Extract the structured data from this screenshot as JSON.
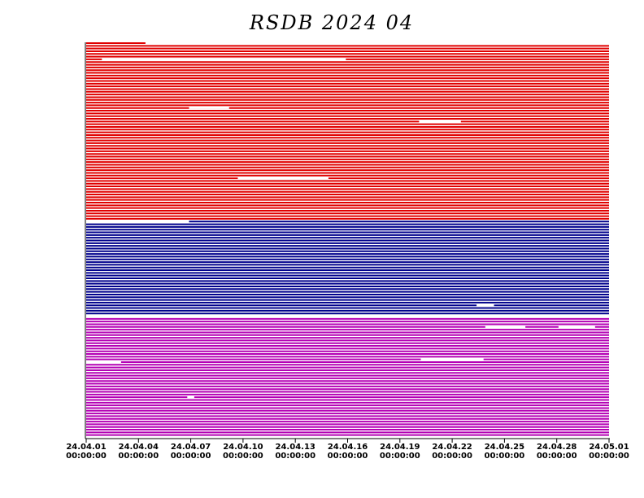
{
  "chart_data": {
    "type": "timeline",
    "title": "RSDB  2024  04",
    "groups": [
      {
        "color": "#e00000",
        "rows": 66
      },
      {
        "color": "#00008c",
        "rows": 36
      },
      {
        "color": "#b400b4",
        "rows": 44
      }
    ],
    "gaps": [
      {
        "row": 0,
        "from": 3.4,
        "to": 30
      },
      {
        "row": 6,
        "from": 0.9,
        "to": 14.9
      },
      {
        "row": 24,
        "from": 5.9,
        "to": 8.2
      },
      {
        "row": 29,
        "from": 19.1,
        "to": 21.5
      },
      {
        "row": 50,
        "from": 8.7,
        "to": 13.9
      },
      {
        "row": 66,
        "from": 0,
        "to": 5.9
      },
      {
        "row": 97,
        "from": 22.4,
        "to": 23.4
      },
      {
        "row": 101,
        "from": 0,
        "to": 30
      },
      {
        "row": 105,
        "from": 22.9,
        "to": 25.2
      },
      {
        "row": 105,
        "from": 27.1,
        "to": 29.2
      },
      {
        "row": 117,
        "from": 19.2,
        "to": 22.8
      },
      {
        "row": 118,
        "from": 0,
        "to": 2.0
      },
      {
        "row": 131,
        "from": 5.8,
        "to": 6.2
      }
    ],
    "xlim": [
      0,
      30
    ],
    "xticks": [
      {
        "value": 0,
        "label": [
          "24.04.01",
          "00:00:00"
        ]
      },
      {
        "value": 3,
        "label": [
          "24.04.04",
          "00:00:00"
        ]
      },
      {
        "value": 6,
        "label": [
          "24.04.07",
          "00:00:00"
        ]
      },
      {
        "value": 9,
        "label": [
          "24.04.10",
          "00:00:00"
        ]
      },
      {
        "value": 12,
        "label": [
          "24.04.13",
          "00:00:00"
        ]
      },
      {
        "value": 15,
        "label": [
          "24.04.16",
          "00:00:00"
        ]
      },
      {
        "value": 18,
        "label": [
          "24.04.19",
          "00:00:00"
        ]
      },
      {
        "value": 21,
        "label": [
          "24.04.22",
          "00:00:00"
        ]
      },
      {
        "value": 24,
        "label": [
          "24.04.25",
          "00:00:00"
        ]
      },
      {
        "value": 27,
        "label": [
          "24.04.28",
          "00:00:00"
        ]
      },
      {
        "value": 30,
        "label": [
          "24.05.01",
          "00:00:00"
        ]
      }
    ]
  }
}
